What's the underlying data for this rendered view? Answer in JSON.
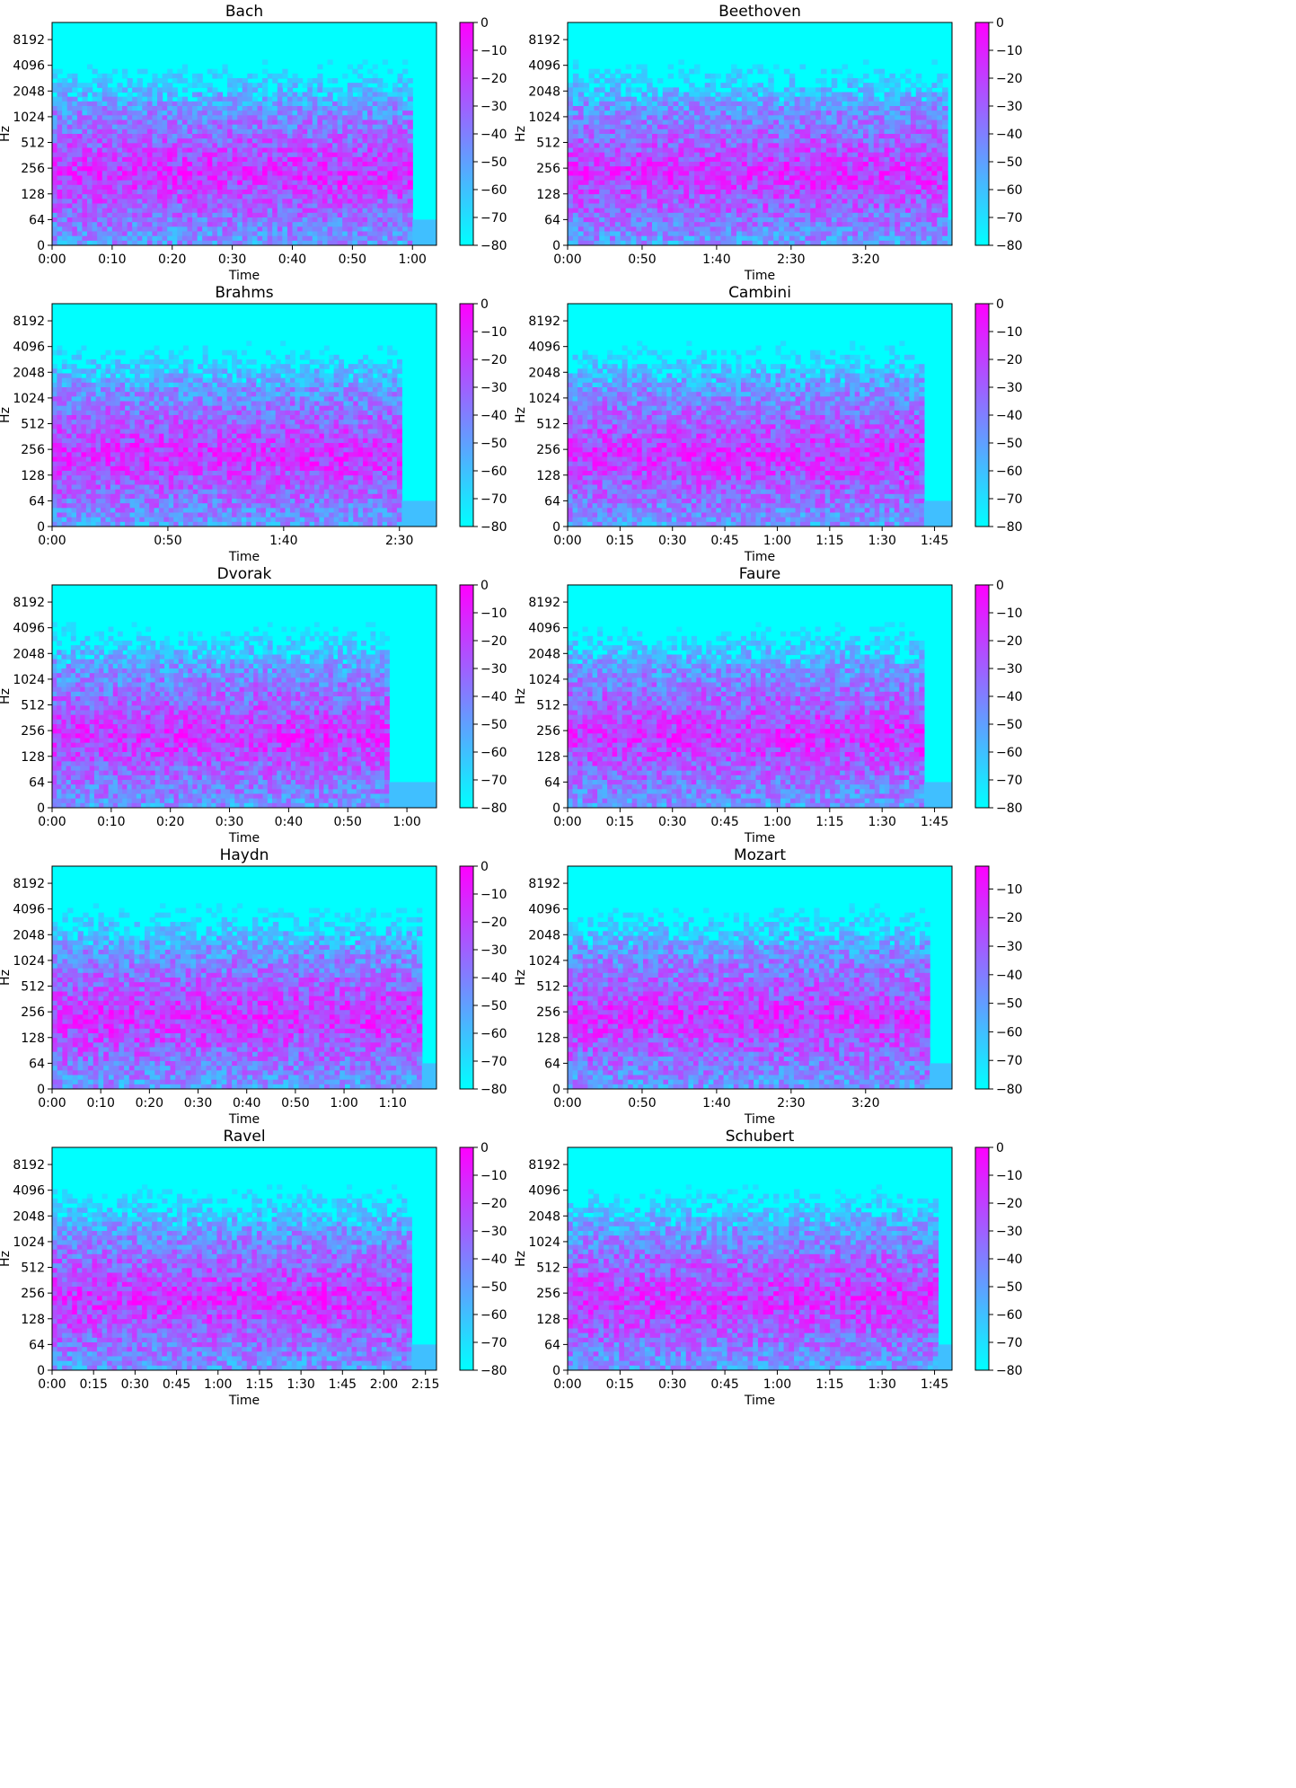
{
  "colors": {
    "low": "#00ffff",
    "high": "#ff00ff",
    "axis": "#000000",
    "background": "#ffffff"
  },
  "chart_data": [
    {
      "type": "heatmap",
      "title": "Bach",
      "xlabel": "Time",
      "ylabel": "Hz",
      "xlim": [
        0,
        64
      ],
      "xticks": [
        0,
        10,
        20,
        30,
        40,
        50,
        60
      ],
      "xticklabels": [
        "0:00",
        "0:10",
        "0:20",
        "0:30",
        "0:40",
        "0:50",
        "1:00"
      ],
      "yscale": "symlog",
      "yticks": [
        0,
        64,
        128,
        256,
        512,
        1024,
        2048,
        4096,
        8192
      ],
      "yticklabels": [
        "0",
        "64",
        "128",
        "256",
        "512",
        "1024",
        "2048",
        "4096",
        "8192"
      ],
      "colorbar": {
        "range": [
          -80,
          0
        ],
        "ticks": [
          0,
          -10,
          -20,
          -30,
          -40,
          -50,
          -60,
          -70,
          -80
        ],
        "ticklabels": [
          "0",
          "−10",
          "−20",
          "−30",
          "−40",
          "−50",
          "−60",
          "−70",
          "−80"
        ]
      },
      "content_end": 60
    },
    {
      "type": "heatmap",
      "title": "Beethoven",
      "xlabel": "Time",
      "ylabel": "Hz",
      "xlim": [
        0,
        258
      ],
      "xticks": [
        0,
        50,
        100,
        150,
        200
      ],
      "xticklabels": [
        "0:00",
        "0:50",
        "1:40",
        "2:30",
        "3:20"
      ],
      "yscale": "symlog",
      "yticks": [
        0,
        64,
        128,
        256,
        512,
        1024,
        2048,
        4096,
        8192
      ],
      "yticklabels": [
        "0",
        "64",
        "128",
        "256",
        "512",
        "1024",
        "2048",
        "4096",
        "8192"
      ],
      "colorbar": {
        "range": [
          -80,
          0
        ],
        "ticks": [
          0,
          -10,
          -20,
          -30,
          -40,
          -50,
          -60,
          -70,
          -80
        ],
        "ticklabels": [
          "0",
          "−10",
          "−20",
          "−30",
          "−40",
          "−50",
          "−60",
          "−70",
          "−80"
        ]
      },
      "content_end": 255
    },
    {
      "type": "heatmap",
      "title": "Brahms",
      "xlabel": "Time",
      "ylabel": "Hz",
      "xlim": [
        0,
        166
      ],
      "xticks": [
        0,
        50,
        100,
        150
      ],
      "xticklabels": [
        "0:00",
        "0:50",
        "1:40",
        "2:30"
      ],
      "yscale": "symlog",
      "yticks": [
        0,
        64,
        128,
        256,
        512,
        1024,
        2048,
        4096,
        8192
      ],
      "yticklabels": [
        "0",
        "64",
        "128",
        "256",
        "512",
        "1024",
        "2048",
        "4096",
        "8192"
      ],
      "colorbar": {
        "range": [
          -80,
          0
        ],
        "ticks": [
          0,
          -10,
          -20,
          -30,
          -40,
          -50,
          -60,
          -70,
          -80
        ],
        "ticklabels": [
          "0",
          "−10",
          "−20",
          "−30",
          "−40",
          "−50",
          "−60",
          "−70",
          "−80"
        ]
      },
      "content_end": 151
    },
    {
      "type": "heatmap",
      "title": "Cambini",
      "xlabel": "Time",
      "ylabel": "Hz",
      "xlim": [
        0,
        110
      ],
      "xticks": [
        0,
        15,
        30,
        45,
        60,
        75,
        90,
        105
      ],
      "xticklabels": [
        "0:00",
        "0:15",
        "0:30",
        "0:45",
        "1:00",
        "1:15",
        "1:30",
        "1:45"
      ],
      "yscale": "symlog",
      "yticks": [
        0,
        64,
        128,
        256,
        512,
        1024,
        2048,
        4096,
        8192
      ],
      "yticklabels": [
        "0",
        "64",
        "128",
        "256",
        "512",
        "1024",
        "2048",
        "4096",
        "8192"
      ],
      "colorbar": {
        "range": [
          -80,
          0
        ],
        "ticks": [
          0,
          -10,
          -20,
          -30,
          -40,
          -50,
          -60,
          -70,
          -80
        ],
        "ticklabels": [
          "0",
          "−10",
          "−20",
          "−30",
          "−40",
          "−50",
          "−60",
          "−70",
          "−80"
        ]
      },
      "content_end": 102
    },
    {
      "type": "heatmap",
      "title": "Dvorak",
      "xlabel": "Time",
      "ylabel": "Hz",
      "xlim": [
        0,
        65
      ],
      "xticks": [
        0,
        10,
        20,
        30,
        40,
        50,
        60
      ],
      "xticklabels": [
        "0:00",
        "0:10",
        "0:20",
        "0:30",
        "0:40",
        "0:50",
        "1:00"
      ],
      "yscale": "symlog",
      "yticks": [
        0,
        64,
        128,
        256,
        512,
        1024,
        2048,
        4096,
        8192
      ],
      "yticklabels": [
        "0",
        "64",
        "128",
        "256",
        "512",
        "1024",
        "2048",
        "4096",
        "8192"
      ],
      "colorbar": {
        "range": [
          -80,
          0
        ],
        "ticks": [
          0,
          -10,
          -20,
          -30,
          -40,
          -50,
          -60,
          -70,
          -80
        ],
        "ticklabels": [
          "0",
          "−10",
          "−20",
          "−30",
          "−40",
          "−50",
          "−60",
          "−70",
          "−80"
        ]
      },
      "content_end": 57
    },
    {
      "type": "heatmap",
      "title": "Faure",
      "xlabel": "Time",
      "ylabel": "Hz",
      "xlim": [
        0,
        110
      ],
      "xticks": [
        0,
        15,
        30,
        45,
        60,
        75,
        90,
        105
      ],
      "xticklabels": [
        "0:00",
        "0:15",
        "0:30",
        "0:45",
        "1:00",
        "1:15",
        "1:30",
        "1:45"
      ],
      "yscale": "symlog",
      "yticks": [
        0,
        64,
        128,
        256,
        512,
        1024,
        2048,
        4096,
        8192
      ],
      "yticklabels": [
        "0",
        "64",
        "128",
        "256",
        "512",
        "1024",
        "2048",
        "4096",
        "8192"
      ],
      "colorbar": {
        "range": [
          -80,
          0
        ],
        "ticks": [
          0,
          -10,
          -20,
          -30,
          -40,
          -50,
          -60,
          -70,
          -80
        ],
        "ticklabels": [
          "0",
          "−10",
          "−20",
          "−30",
          "−40",
          "−50",
          "−60",
          "−70",
          "−80"
        ]
      },
      "content_end": 102
    },
    {
      "type": "heatmap",
      "title": "Haydn",
      "xlabel": "Time",
      "ylabel": "Hz",
      "xlim": [
        0,
        79
      ],
      "xticks": [
        0,
        10,
        20,
        30,
        40,
        50,
        60,
        70
      ],
      "xticklabels": [
        "0:00",
        "0:10",
        "0:20",
        "0:30",
        "0:40",
        "0:50",
        "1:00",
        "1:10"
      ],
      "yscale": "symlog",
      "yticks": [
        0,
        64,
        128,
        256,
        512,
        1024,
        2048,
        4096,
        8192
      ],
      "yticklabels": [
        "0",
        "64",
        "128",
        "256",
        "512",
        "1024",
        "2048",
        "4096",
        "8192"
      ],
      "colorbar": {
        "range": [
          -80,
          0
        ],
        "ticks": [
          0,
          -10,
          -20,
          -30,
          -40,
          -50,
          -60,
          -70,
          -80
        ],
        "ticklabels": [
          "0",
          "−10",
          "−20",
          "−30",
          "−40",
          "−50",
          "−60",
          "−70",
          "−80"
        ]
      },
      "content_end": 76
    },
    {
      "type": "heatmap",
      "title": "Mozart",
      "xlabel": "Time",
      "ylabel": "Hz",
      "xlim": [
        0,
        258
      ],
      "xticks": [
        0,
        50,
        100,
        150,
        200
      ],
      "xticklabels": [
        "0:00",
        "0:50",
        "1:40",
        "2:30",
        "3:20"
      ],
      "yscale": "symlog",
      "yticks": [
        0,
        64,
        128,
        256,
        512,
        1024,
        2048,
        4096,
        8192
      ],
      "yticklabels": [
        "0",
        "64",
        "128",
        "256",
        "512",
        "1024",
        "2048",
        "4096",
        "8192"
      ],
      "colorbar": {
        "range": [
          -80,
          -2
        ],
        "ticks": [
          -10,
          -20,
          -30,
          -40,
          -50,
          -60,
          -70,
          -80
        ],
        "ticklabels": [
          "−10",
          "−20",
          "−30",
          "−40",
          "−50",
          "−60",
          "−70",
          "−80"
        ]
      },
      "content_end": 243
    },
    {
      "type": "heatmap",
      "title": "Ravel",
      "xlabel": "Time",
      "ylabel": "Hz",
      "xlim": [
        0,
        139
      ],
      "xticks": [
        0,
        15,
        30,
        45,
        60,
        75,
        90,
        105,
        120,
        135
      ],
      "xticklabels": [
        "0:00",
        "0:15",
        "0:30",
        "0:45",
        "1:00",
        "1:15",
        "1:30",
        "1:45",
        "2:00",
        "2:15"
      ],
      "yscale": "symlog",
      "yticks": [
        0,
        64,
        128,
        256,
        512,
        1024,
        2048,
        4096,
        8192
      ],
      "yticklabels": [
        "0",
        "64",
        "128",
        "256",
        "512",
        "1024",
        "2048",
        "4096",
        "8192"
      ],
      "colorbar": {
        "range": [
          -80,
          0
        ],
        "ticks": [
          0,
          -10,
          -20,
          -30,
          -40,
          -50,
          -60,
          -70,
          -80
        ],
        "ticklabels": [
          "0",
          "−10",
          "−20",
          "−30",
          "−40",
          "−50",
          "−60",
          "−70",
          "−80"
        ]
      },
      "content_end": 130
    },
    {
      "type": "heatmap",
      "title": "Schubert",
      "xlabel": "Time",
      "ylabel": "Hz",
      "xlim": [
        0,
        110
      ],
      "xticks": [
        0,
        15,
        30,
        45,
        60,
        75,
        90,
        105
      ],
      "xticklabels": [
        "0:00",
        "0:15",
        "0:30",
        "0:45",
        "1:00",
        "1:15",
        "1:30",
        "1:45"
      ],
      "yscale": "symlog",
      "yticks": [
        0,
        64,
        128,
        256,
        512,
        1024,
        2048,
        4096,
        8192
      ],
      "yticklabels": [
        "0",
        "64",
        "128",
        "256",
        "512",
        "1024",
        "2048",
        "4096",
        "8192"
      ],
      "colorbar": {
        "range": [
          -80,
          0
        ],
        "ticks": [
          0,
          -10,
          -20,
          -30,
          -40,
          -50,
          -60,
          -70,
          -80
        ],
        "ticklabels": [
          "0",
          "−10",
          "−20",
          "−30",
          "−40",
          "−50",
          "−60",
          "−70",
          "−80"
        ]
      },
      "content_end": 106
    }
  ]
}
